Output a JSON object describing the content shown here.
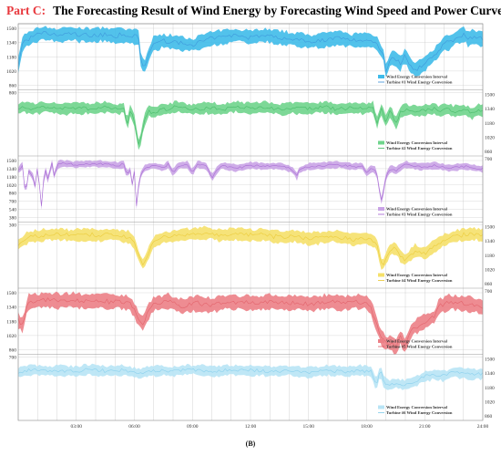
{
  "title": {
    "prefix": "Part C:",
    "text": "The Forecasting Result of Wind Energy by Forecasting Wind Speed and Power Curve"
  },
  "caption": "(B)",
  "colors": {
    "prefix": "#e8383d",
    "grid": "#c8c8c8",
    "bands": [
      "#3fbbe9",
      "#6fd48c",
      "#c9a3e6",
      "#f5e06a",
      "#ec7f86",
      "#b8e4f5"
    ],
    "lines": [
      "#3a8fd8",
      "#3bb45e",
      "#a05ed0",
      "#e8c52c",
      "#e05a63",
      "#7ecbeb"
    ]
  },
  "x_ticks": [
    "03:00",
    "06:00",
    "09:00",
    "12:00",
    "15:00",
    "18:00",
    "21:00",
    "24:00"
  ],
  "chart_data": [
    {
      "type": "area",
      "ylim": [
        860,
        1500
      ],
      "left_ticks": [
        "1500",
        "1340",
        "1180",
        "1020",
        "860"
      ],
      "right_ticks": [],
      "legend": [
        "Wind Energy Conversion Interval",
        "Turbine #1 Wind Energy Conversion"
      ],
      "band_width": 150,
      "profile": [
        [
          0,
          1090
        ],
        [
          1,
          1350
        ],
        [
          3,
          1400
        ],
        [
          5,
          1450
        ],
        [
          8,
          1420
        ],
        [
          11,
          1440
        ],
        [
          14,
          1420
        ],
        [
          17,
          1430
        ],
        [
          20,
          1420
        ],
        [
          23,
          1410
        ],
        [
          25,
          1400
        ],
        [
          25.3,
          1150
        ],
        [
          26,
          1050
        ],
        [
          27,
          1200
        ],
        [
          28,
          1350
        ],
        [
          29,
          1330
        ],
        [
          30,
          1360
        ],
        [
          33,
          1340
        ],
        [
          36,
          1310
        ],
        [
          39,
          1370
        ],
        [
          42,
          1400
        ],
        [
          45,
          1420
        ],
        [
          48,
          1400
        ],
        [
          51,
          1420
        ],
        [
          54,
          1390
        ],
        [
          57,
          1380
        ],
        [
          60,
          1350
        ],
        [
          63,
          1370
        ],
        [
          66,
          1390
        ],
        [
          69,
          1360
        ],
        [
          72,
          1370
        ],
        [
          74,
          1340
        ],
        [
          75.5,
          1200
        ],
        [
          76,
          1000
        ],
        [
          77,
          1180
        ],
        [
          78,
          1150
        ],
        [
          79,
          1100
        ],
        [
          80,
          1200
        ],
        [
          81,
          1080
        ],
        [
          82,
          1030
        ],
        [
          83,
          1060
        ],
        [
          84,
          1100
        ],
        [
          85,
          1150
        ],
        [
          86,
          1200
        ],
        [
          87,
          1260
        ],
        [
          88,
          1340
        ],
        [
          89,
          1330
        ],
        [
          90,
          1380
        ],
        [
          91,
          1410
        ],
        [
          92,
          1430
        ],
        [
          93,
          1380
        ],
        [
          94,
          1410
        ],
        [
          95,
          1390
        ],
        [
          96,
          1380
        ]
      ]
    },
    {
      "type": "area",
      "ylim": [
        860,
        1500
      ],
      "left_ticks": [
        "800"
      ],
      "right_ticks": [
        "1500",
        "1340",
        "1180",
        "1020",
        "860"
      ],
      "legend": [
        "Wind Energy Conversion Interval",
        "Turbine #2 Wind Energy Conversion"
      ],
      "band_width": 120,
      "profile": [
        [
          0,
          1330
        ],
        [
          1,
          1360
        ],
        [
          3,
          1340
        ],
        [
          6,
          1360
        ],
        [
          9,
          1330
        ],
        [
          12,
          1350
        ],
        [
          15,
          1340
        ],
        [
          18,
          1360
        ],
        [
          21,
          1330
        ],
        [
          22,
          1360
        ],
        [
          22.5,
          1100
        ],
        [
          23,
          1340
        ],
        [
          24,
          1200
        ],
        [
          24.5,
          1050
        ],
        [
          25,
          900
        ],
        [
          26,
          1200
        ],
        [
          27,
          1320
        ],
        [
          28,
          1300
        ],
        [
          30,
          1330
        ],
        [
          33,
          1360
        ],
        [
          36,
          1330
        ],
        [
          39,
          1350
        ],
        [
          42,
          1330
        ],
        [
          45,
          1360
        ],
        [
          48,
          1340
        ],
        [
          51,
          1360
        ],
        [
          54,
          1330
        ],
        [
          57,
          1350
        ],
        [
          60,
          1340
        ],
        [
          63,
          1360
        ],
        [
          66,
          1330
        ],
        [
          69,
          1350
        ],
        [
          72,
          1340
        ],
        [
          73.5,
          1360
        ],
        [
          74,
          1150
        ],
        [
          75,
          1330
        ],
        [
          76,
          1200
        ],
        [
          77,
          1320
        ],
        [
          78,
          1160
        ],
        [
          79,
          1300
        ],
        [
          80,
          1330
        ],
        [
          83,
          1310
        ],
        [
          86,
          1340
        ],
        [
          87,
          1300
        ],
        [
          88,
          1340
        ],
        [
          90,
          1310
        ],
        [
          92,
          1330
        ],
        [
          94,
          1280
        ],
        [
          95,
          1330
        ],
        [
          96,
          1320
        ]
      ]
    },
    {
      "type": "area",
      "ylim": [
        380,
        1500
      ],
      "left_ticks": [
        "1500",
        "1340",
        "1180",
        "1020",
        "860",
        "700",
        "540",
        "380"
      ],
      "right_ticks": [
        "700"
      ],
      "legend": [
        "Wind Energy Conversion Interval",
        "Turbine #3 Wind Energy Conversion"
      ],
      "band_width": 130,
      "profile": [
        [
          0,
          1300
        ],
        [
          1,
          1420
        ],
        [
          1.5,
          700
        ],
        [
          2,
          1300
        ],
        [
          3,
          1200
        ],
        [
          3.5,
          1000
        ],
        [
          4,
          1380
        ],
        [
          4.8,
          600
        ],
        [
          5.5,
          1400
        ],
        [
          6,
          1100
        ],
        [
          7,
          1440
        ],
        [
          7.5,
          1150
        ],
        [
          8,
          1420
        ],
        [
          9,
          1440
        ],
        [
          12,
          1420
        ],
        [
          15,
          1440
        ],
        [
          18,
          1430
        ],
        [
          21,
          1400
        ],
        [
          22,
          1420
        ],
        [
          22.5,
          1150
        ],
        [
          23,
          1420
        ],
        [
          23.5,
          1000
        ],
        [
          24,
          1300
        ],
        [
          24.5,
          520
        ],
        [
          25,
          1150
        ],
        [
          26,
          1350
        ],
        [
          28,
          1400
        ],
        [
          30,
          1350
        ],
        [
          31,
          1420
        ],
        [
          32,
          1250
        ],
        [
          33,
          1400
        ],
        [
          35,
          1420
        ],
        [
          36,
          1260
        ],
        [
          37,
          1430
        ],
        [
          39,
          1380
        ],
        [
          40,
          1150
        ],
        [
          41,
          1300
        ],
        [
          42,
          1400
        ],
        [
          45,
          1350
        ],
        [
          48,
          1400
        ],
        [
          51,
          1380
        ],
        [
          54,
          1400
        ],
        [
          57,
          1300
        ],
        [
          57.5,
          1150
        ],
        [
          58,
          1300
        ],
        [
          60,
          1380
        ],
        [
          63,
          1400
        ],
        [
          66,
          1420
        ],
        [
          69,
          1380
        ],
        [
          71,
          1400
        ],
        [
          72,
          1250
        ],
        [
          73,
          1350
        ],
        [
          74,
          1300
        ],
        [
          74.5,
          1000
        ],
        [
          75,
          680
        ],
        [
          75.5,
          900
        ],
        [
          76,
          1200
        ],
        [
          77,
          1350
        ],
        [
          78,
          1300
        ],
        [
          80,
          1420
        ],
        [
          83,
          1380
        ],
        [
          86,
          1400
        ],
        [
          89,
          1350
        ],
        [
          92,
          1380
        ],
        [
          94,
          1360
        ],
        [
          96,
          1330
        ]
      ]
    },
    {
      "type": "area",
      "ylim": [
        860,
        1500
      ],
      "left_ticks": [
        "300"
      ],
      "right_ticks": [
        "1500",
        "1340",
        "1180",
        "1020",
        "860"
      ],
      "legend": [
        "Wind Energy Conversion Interval",
        "Turbine #4 Wind Energy Conversion"
      ],
      "band_width": 130,
      "profile": [
        [
          0,
          1300
        ],
        [
          2,
          1380
        ],
        [
          5,
          1400
        ],
        [
          8,
          1420
        ],
        [
          11,
          1400
        ],
        [
          14,
          1410
        ],
        [
          17,
          1400
        ],
        [
          20,
          1410
        ],
        [
          23,
          1380
        ],
        [
          24,
          1320
        ],
        [
          25,
          1150
        ],
        [
          25.8,
          1080
        ],
        [
          26.5,
          1150
        ],
        [
          28,
          1330
        ],
        [
          30,
          1380
        ],
        [
          33,
          1400
        ],
        [
          36,
          1420
        ],
        [
          39,
          1430
        ],
        [
          42,
          1400
        ],
        [
          45,
          1420
        ],
        [
          48,
          1400
        ],
        [
          51,
          1410
        ],
        [
          54,
          1380
        ],
        [
          57,
          1390
        ],
        [
          60,
          1360
        ],
        [
          63,
          1380
        ],
        [
          66,
          1390
        ],
        [
          69,
          1360
        ],
        [
          72,
          1370
        ],
        [
          74,
          1320
        ],
        [
          75.2,
          1050
        ],
        [
          76,
          1150
        ],
        [
          77,
          1250
        ],
        [
          78,
          1260
        ],
        [
          79,
          1170
        ],
        [
          80,
          1130
        ],
        [
          81,
          1180
        ],
        [
          82,
          1230
        ],
        [
          84,
          1200
        ],
        [
          86,
          1280
        ],
        [
          88,
          1350
        ],
        [
          91,
          1400
        ],
        [
          94,
          1420
        ],
        [
          96,
          1400
        ]
      ]
    },
    {
      "type": "area",
      "ylim": [
        860,
        1500
      ],
      "left_ticks": [
        "1500",
        "1340",
        "1180",
        "1020",
        "860"
      ],
      "right_ticks": [
        "700"
      ],
      "legend": [
        "Wind Energy Conversion Interval",
        "Turbine #5 Wind Energy Conversion"
      ],
      "band_width": 160,
      "profile": [
        [
          0,
          1180
        ],
        [
          1,
          1130
        ],
        [
          2,
          1400
        ],
        [
          5,
          1420
        ],
        [
          8,
          1410
        ],
        [
          11,
          1420
        ],
        [
          14,
          1400
        ],
        [
          17,
          1410
        ],
        [
          20,
          1400
        ],
        [
          23,
          1390
        ],
        [
          24,
          1300
        ],
        [
          25,
          1200
        ],
        [
          25.7,
          1150
        ],
        [
          26.5,
          1250
        ],
        [
          28,
          1380
        ],
        [
          31,
          1400
        ],
        [
          34,
          1350
        ],
        [
          37,
          1380
        ],
        [
          40,
          1360
        ],
        [
          43,
          1400
        ],
        [
          46,
          1390
        ],
        [
          49,
          1380
        ],
        [
          52,
          1400
        ],
        [
          55,
          1380
        ],
        [
          58,
          1390
        ],
        [
          61,
          1380
        ],
        [
          64,
          1400
        ],
        [
          67,
          1380
        ],
        [
          70,
          1400
        ],
        [
          72,
          1390
        ],
        [
          73,
          1330
        ],
        [
          74,
          1150
        ],
        [
          75,
          1000
        ],
        [
          76,
          930
        ],
        [
          77,
          950
        ],
        [
          78,
          880
        ],
        [
          79,
          1000
        ],
        [
          80,
          900
        ],
        [
          81,
          1050
        ],
        [
          82,
          1120
        ],
        [
          84,
          1180
        ],
        [
          86,
          1230
        ],
        [
          87,
          1350
        ],
        [
          89,
          1390
        ],
        [
          91,
          1380
        ],
        [
          93,
          1370
        ],
        [
          96,
          1340
        ]
      ]
    },
    {
      "type": "area",
      "ylim": [
        860,
        1500
      ],
      "left_ticks": [
        "700"
      ],
      "right_ticks": [
        "1500",
        "1340",
        "1180",
        "1020",
        "860"
      ],
      "legend": [
        "Wind Energy Conversion Interval",
        "Turbine #6 Wind Energy Conversion"
      ],
      "band_width": 110,
      "profile": [
        [
          0,
          1350
        ],
        [
          3,
          1380
        ],
        [
          6,
          1360
        ],
        [
          9,
          1370
        ],
        [
          12,
          1360
        ],
        [
          15,
          1380
        ],
        [
          18,
          1360
        ],
        [
          21,
          1370
        ],
        [
          24,
          1350
        ],
        [
          25,
          1330
        ],
        [
          26,
          1350
        ],
        [
          29,
          1370
        ],
        [
          32,
          1360
        ],
        [
          35,
          1380
        ],
        [
          38,
          1370
        ],
        [
          41,
          1360
        ],
        [
          44,
          1380
        ],
        [
          47,
          1360
        ],
        [
          50,
          1370
        ],
        [
          53,
          1360
        ],
        [
          56,
          1370
        ],
        [
          59,
          1350
        ],
        [
          62,
          1360
        ],
        [
          65,
          1370
        ],
        [
          68,
          1360
        ],
        [
          71,
          1370
        ],
        [
          73,
          1360
        ],
        [
          74,
          1200
        ],
        [
          74.8,
          1380
        ],
        [
          75.5,
          1250
        ],
        [
          76.5,
          1200
        ],
        [
          78,
          1230
        ],
        [
          80,
          1210
        ],
        [
          82,
          1250
        ],
        [
          84,
          1300
        ],
        [
          86,
          1320
        ],
        [
          88,
          1310
        ],
        [
          90,
          1350
        ],
        [
          92,
          1340
        ],
        [
          94,
          1320
        ],
        [
          96,
          1330
        ]
      ]
    }
  ]
}
